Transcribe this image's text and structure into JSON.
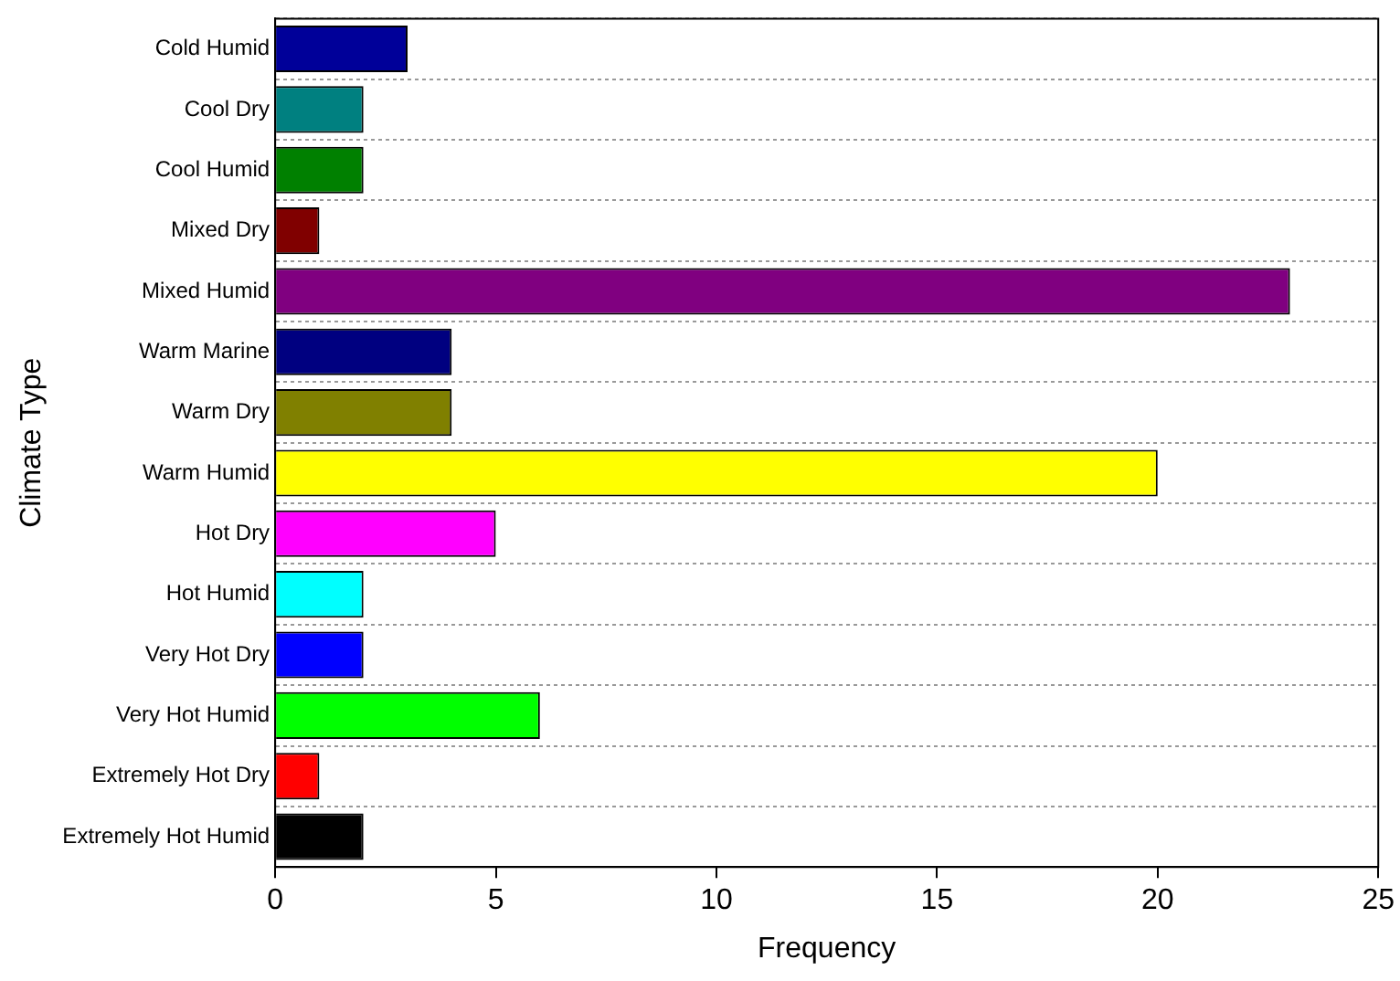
{
  "chart_data": {
    "type": "bar",
    "orientation": "horizontal",
    "xlabel": "Frequency",
    "ylabel": "Climate Type",
    "categories": [
      "Cold Humid",
      "Cool Dry",
      "Cool Humid",
      "Mixed Dry",
      "Mixed Humid",
      "Warm Marine",
      "Warm Dry",
      "Warm Humid",
      "Hot Dry",
      "Hot Humid",
      "Very Hot Dry",
      "Very Hot Humid",
      "Extremely Hot Dry",
      "Extremely Hot Humid"
    ],
    "values": [
      3,
      2,
      2,
      1,
      23,
      4,
      4,
      20,
      5,
      2,
      2,
      6,
      1,
      2
    ],
    "colors": [
      "#000099",
      "#008080",
      "#008000",
      "#800000",
      "#800080",
      "#000080",
      "#808000",
      "#ffff00",
      "#ff00ff",
      "#00ffff",
      "#0000ff",
      "#00ff00",
      "#ff0000",
      "#000000"
    ],
    "xlim": [
      0,
      25
    ],
    "xticks": [
      0,
      5,
      10,
      15,
      20,
      25
    ],
    "grid": "y"
  }
}
